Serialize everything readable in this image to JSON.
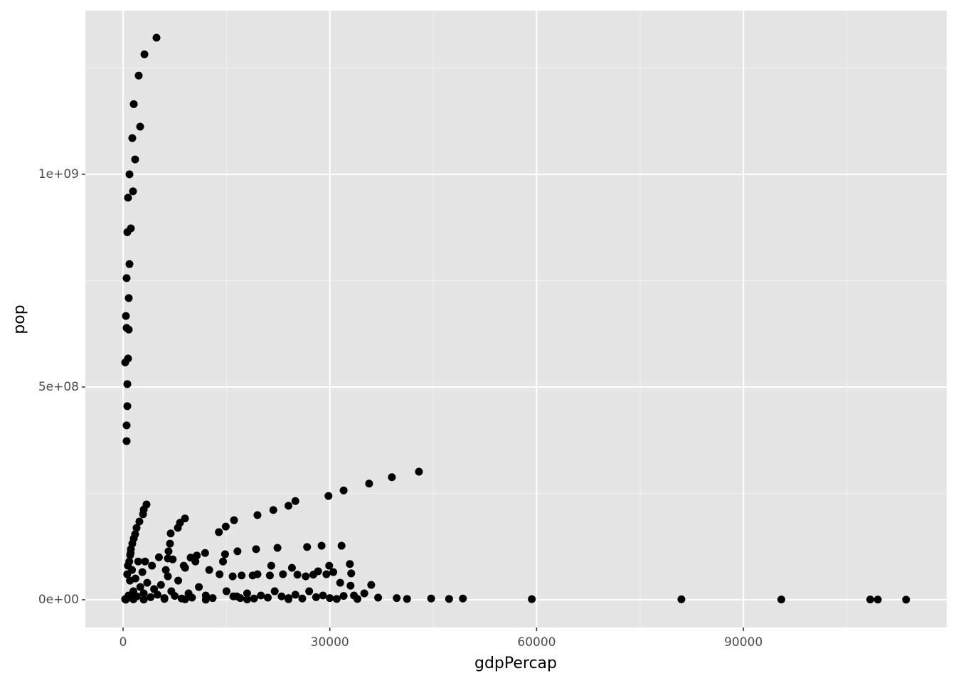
{
  "chart_data": {
    "type": "scatter",
    "x_label": "gdpPercap",
    "y_label": "pop",
    "color": "#000000",
    "background": "#e5e5e5",
    "grid": true,
    "xlim": [
      -5470,
      119500
    ],
    "ylim": [
      -65200000,
      1384600000
    ],
    "xticks": [
      0,
      30000,
      60000,
      90000
    ],
    "x_minor_ticks": [
      15000,
      45000,
      75000,
      105000
    ],
    "yticks": [
      {
        "value": 0,
        "label": "0e+00"
      },
      {
        "value": 500000000,
        "label": "5e+08"
      },
      {
        "value": 1000000000,
        "label": "1e+09"
      }
    ],
    "y_minor_ticks": [
      250000000,
      750000000,
      1250000000
    ],
    "x": [
      4850,
      3100,
      2270,
      1550,
      2480,
      1340,
      1750,
      930,
      1440,
      720,
      1135,
      620,
      930,
      516,
      826,
      413,
      516,
      826,
      720,
      310,
      620,
      620,
      516,
      516,
      42930,
      39000,
      35700,
      32000,
      29800,
      25000,
      24000,
      21800,
      19500,
      16100,
      14900,
      13900,
      31700,
      28800,
      26700,
      22400,
      19300,
      16600,
      14800,
      11900,
      10700,
      9800,
      3400,
      3000,
      2900,
      2370,
      1960,
      1750,
      1550,
      1340,
      1135,
      1030,
      8980,
      8260,
      7950,
      6910,
      6810,
      6600,
      6500,
      32900,
      29900,
      28300,
      27600,
      25300,
      23200,
      21300,
      18800,
      17200,
      15900,
      33100,
      113600,
      109500,
      108400,
      95500,
      81000,
      59300,
      49300,
      47300,
      44700,
      41200,
      39700,
      500,
      800,
      1200,
      1500,
      2000,
      2500,
      3000,
      3500,
      4000,
      4500,
      5000,
      5500,
      6000,
      6500,
      7000,
      7500,
      8000,
      8500,
      9000,
      9500,
      10000,
      11000,
      12000,
      13000,
      14000,
      15000,
      16000,
      17000,
      18000,
      19000,
      20000,
      21000,
      22000,
      23000,
      24000,
      25000,
      26000,
      27000,
      28000,
      29000,
      30000,
      31000,
      32000,
      33000,
      34000,
      35000,
      36000,
      37000,
      300,
      600,
      700,
      900,
      1000,
      1100,
      1300,
      1800,
      2200,
      2800,
      3200,
      4200,
      5200,
      6200,
      7200,
      8800,
      10500,
      12500,
      14500,
      16500,
      19500,
      21500,
      24500,
      26500,
      29500,
      30500,
      31500,
      33500,
      400,
      1500,
      3000,
      6000,
      9000,
      12000,
      18000,
      24000
    ],
    "values": [
      1321000000,
      1282000000,
      1232000000,
      1165000000,
      1112000000,
      1085000000,
      1035000000,
      1000000000,
      960000000,
      945000000,
      873000000,
      864000000,
      789000000,
      756000000,
      709000000,
      667000000,
      639000000,
      635000000,
      567000000,
      558000000,
      507000000,
      455000000,
      410000000,
      373000000,
      301000000,
      288000000,
      273000000,
      257000000,
      244000000,
      232000000,
      221000000,
      211000000,
      199000000,
      187000000,
      172000000,
      159000000,
      127000000,
      127000000,
      124000000,
      122000000,
      119000000,
      114000000,
      107000000,
      110000000,
      104000000,
      99000000,
      224000000,
      212000000,
      201000000,
      184000000,
      169000000,
      154000000,
      144000000,
      132000000,
      119000000,
      105000000,
      191000000,
      181000000,
      169000000,
      156000000,
      132000000,
      114000000,
      97000000,
      84000000,
      80000000,
      67000000,
      59000000,
      59000000,
      60000000,
      57000000,
      57000000,
      57000000,
      55000000,
      62000000,
      200000,
      500000,
      600000,
      600000,
      1000000,
      1500000,
      3000000,
      2000000,
      3000000,
      2000000,
      4000000,
      3000000,
      10000000,
      5000000,
      20000000,
      8000000,
      30000000,
      15000000,
      40000000,
      6000000,
      25000000,
      12000000,
      35000000,
      4000000,
      55000000,
      20000000,
      9000000,
      45000000,
      3000000,
      75000000,
      15000000,
      5000000,
      30000000,
      10000000,
      4000000,
      60000000,
      20000000,
      8000000,
      4000000,
      15000000,
      3000000,
      10000000,
      5000000,
      20000000,
      8000000,
      4000000,
      12000000,
      3000000,
      20000000,
      6000000,
      10000000,
      4000000,
      2000000,
      9000000,
      33000000,
      2000000,
      15000000,
      35000000,
      5000000,
      1500000,
      60000000,
      80000000,
      90000000,
      45000000,
      110000000,
      70000000,
      50000000,
      90000000,
      65000000,
      90000000,
      80000000,
      100000000,
      70000000,
      95000000,
      80000000,
      90000000,
      70000000,
      90000000,
      8000000,
      60000000,
      80000000,
      75000000,
      55000000,
      60000000,
      65000000,
      40000000,
      10000000,
      200000,
      1000000,
      500000,
      2000000,
      1000000,
      300000,
      700000,
      1200000
    ]
  }
}
